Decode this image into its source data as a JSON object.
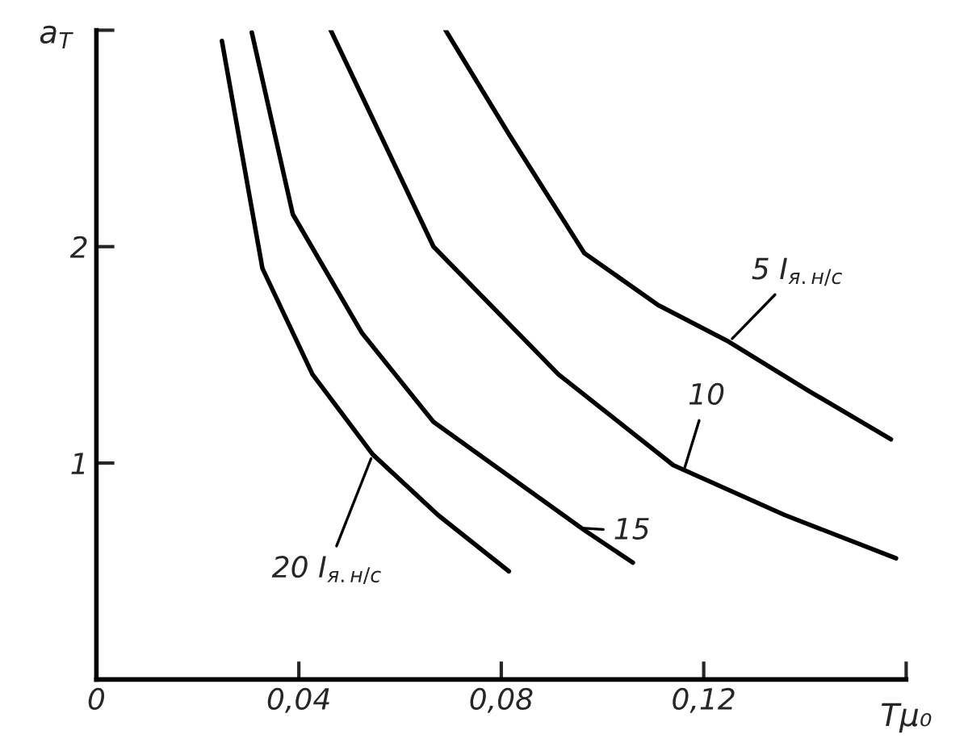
{
  "chart_data": {
    "type": "line",
    "xlabel": "Tμ₀",
    "ylabel": "a$_{T}$",
    "xlim": [
      0,
      0.16
    ],
    "ylim": [
      0,
      3
    ],
    "xticks": [
      {
        "value": 0,
        "label": "0"
      },
      {
        "value": 0.04,
        "label": "0,04"
      },
      {
        "value": 0.08,
        "label": "0,08"
      },
      {
        "value": 0.12,
        "label": "0,12"
      },
      {
        "value": 0.16,
        "label": null
      }
    ],
    "yticks": [
      {
        "value": 1,
        "label": "1"
      },
      {
        "value": 2,
        "label": "2"
      },
      {
        "value": 3,
        "label": null
      }
    ],
    "grid": false,
    "legend": false,
    "marker": "none",
    "line_style": "solid",
    "series": [
      {
        "color": "#000000",
        "x": [
          0.0248,
          0.0328,
          0.0427,
          0.0546,
          0.0675,
          0.0815
        ],
        "values": [
          2.95,
          1.9,
          1.41,
          1.04,
          0.76,
          0.5
        ]
      },
      {
        "color": "#000000",
        "x": [
          0.0307,
          0.0388,
          0.0525,
          0.0666,
          0.0964,
          0.106
        ],
        "values": [
          2.99,
          2.15,
          1.6,
          1.19,
          0.69,
          0.54
        ]
      },
      {
        "color": "#000000",
        "x": [
          0.0463,
          0.0666,
          0.0913,
          0.114,
          0.136,
          0.158
        ],
        "values": [
          3.0,
          2.0,
          1.41,
          0.99,
          0.76,
          0.56
        ]
      },
      {
        "color": "#000000",
        "x": [
          0.069,
          0.0815,
          0.0964,
          0.111,
          0.125,
          0.141,
          0.157
        ],
        "values": [
          3.0,
          2.52,
          1.97,
          1.73,
          1.56,
          1.33,
          1.11
        ]
      }
    ],
    "annotations": [
      {
        "text": "5 I$_{я.н/с}$",
        "x": 0.125,
        "y": 1.56
      },
      {
        "text": "10",
        "x": 0.116,
        "y": 0.96
      },
      {
        "text": "15",
        "x": 0.0955,
        "y": 0.7
      },
      {
        "text": "20 I$_{я.н/с}$",
        "x": 0.0546,
        "y": 1.04
      }
    ]
  }
}
